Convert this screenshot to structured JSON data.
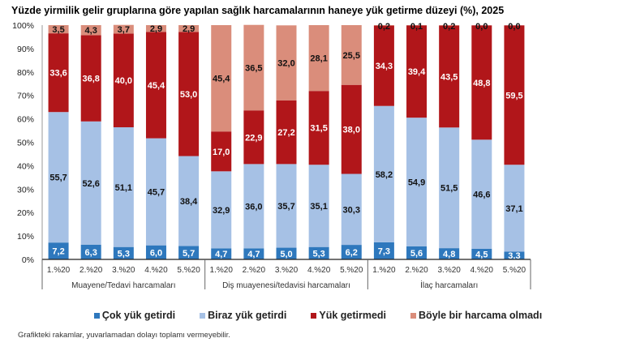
{
  "chart_data": {
    "type": "bar",
    "stacked": true,
    "title": "Yüzde yirmilik gelir gruplarına göre yapılan sağlık harcamalarının haneye yük getirme düzeyi (%), 2025",
    "ylim": [
      0,
      100
    ],
    "yticks": [
      "0%",
      "10%",
      "20%",
      "30%",
      "40%",
      "50%",
      "60%",
      "70%",
      "80%",
      "90%",
      "100%"
    ],
    "groups": [
      {
        "label": "Muayene/Tedavi harcamaları",
        "categories": [
          "1.%20",
          "2.%20",
          "3.%20",
          "4.%20",
          "5.%20"
        ]
      },
      {
        "label": "Diş muayenesi/tedavisi harcamaları",
        "categories": [
          "1.%20",
          "2.%20",
          "3.%20",
          "4.%20",
          "5.%20"
        ]
      },
      {
        "label": "İlaç harcamaları",
        "categories": [
          "1.%20",
          "2.%20",
          "3.%20",
          "4.%20",
          "5.%20"
        ]
      }
    ],
    "series": [
      {
        "name": "Çok yük getirdi",
        "color": "#2e78bd",
        "label_color": "#ffffff",
        "values": [
          7.2,
          6.3,
          5.3,
          6.0,
          5.7,
          4.7,
          4.7,
          5.0,
          5.3,
          6.2,
          7.3,
          5.6,
          4.8,
          4.5,
          3.3
        ]
      },
      {
        "name": "Biraz yük getirdi",
        "color": "#a6c1e5",
        "label_color": "#111111",
        "values": [
          55.7,
          52.6,
          51.1,
          45.7,
          38.4,
          32.9,
          36.0,
          35.7,
          35.1,
          30.3,
          58.2,
          54.9,
          51.5,
          46.6,
          37.1
        ]
      },
      {
        "name": "Yük getirmedi",
        "color": "#b1161a",
        "label_color": "#ffffff",
        "values": [
          33.6,
          36.8,
          40.0,
          45.4,
          53.0,
          17.0,
          22.9,
          27.2,
          31.5,
          38.0,
          34.3,
          39.4,
          43.5,
          48.8,
          59.5
        ]
      },
      {
        "name": "Böyle bir harcama olmadı",
        "color": "#da8d7b",
        "label_color": "#111111",
        "values": [
          3.5,
          4.3,
          3.7,
          2.9,
          2.9,
          45.4,
          36.5,
          32.0,
          28.1,
          25.5,
          0.2,
          0.1,
          0.2,
          0.0,
          0.0
        ]
      }
    ],
    "legend_position": "bottom",
    "grid": false
  },
  "note": "Grafikteki rakamlar, yuvarlamadan dolayı toplamı vermeyebilir."
}
